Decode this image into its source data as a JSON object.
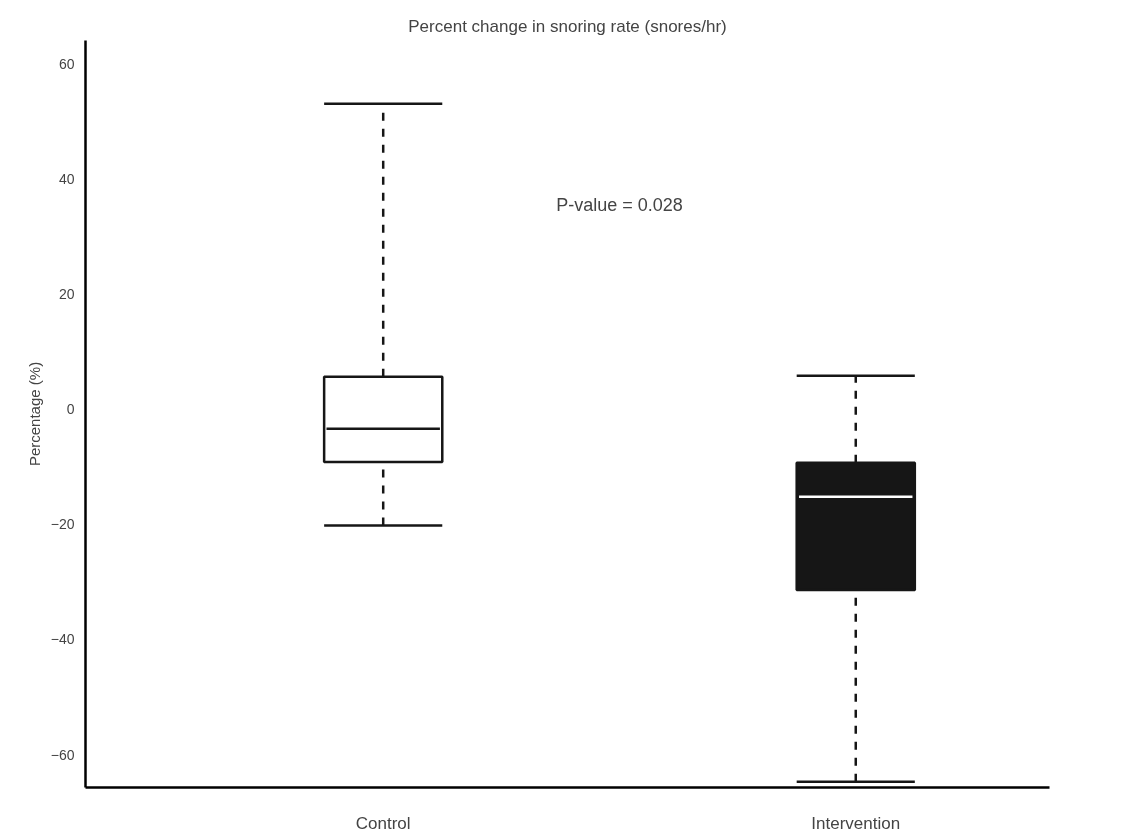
{
  "chart_data": {
    "type": "box",
    "title": "Percent change in snoring rate (snores/hr)",
    "ylabel": "Percentage (%)",
    "categories": [
      "Control",
      "Intervention"
    ],
    "boxes": [
      {
        "low": -20.2,
        "q1": -9.2,
        "median": -3.4,
        "q3": 5.6,
        "high": 53
      },
      {
        "low": -64.7,
        "q1": -31.4,
        "median": -15.2,
        "q3": -9.3,
        "high": 5.8
      }
    ],
    "colors": [
      "#ffffff",
      "#161616"
    ],
    "ylim": [
      -65.7,
      64
    ],
    "yticks": [
      -60,
      -40,
      -20,
      0,
      20,
      40,
      60
    ],
    "grid": false,
    "annotations": [
      "P-value = 0.028"
    ]
  }
}
